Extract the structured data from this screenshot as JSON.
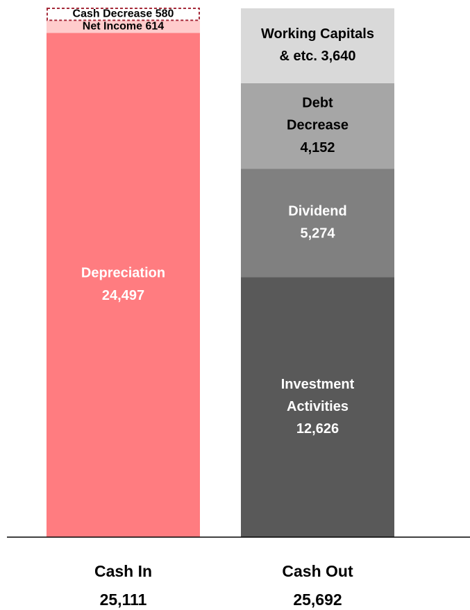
{
  "chart_data": {
    "type": "bar",
    "stacked": true,
    "categories": [
      "Cash In",
      "Cash Out"
    ],
    "totals": [
      25111,
      25692
    ],
    "total_labels": [
      "25,111",
      "25,692"
    ],
    "bars": [
      {
        "segments": [
          {
            "name_lines": [
              "Depreciation"
            ],
            "value": 24497,
            "value_label": "24,497",
            "color": "#ff7c80"
          },
          {
            "name_lines": [
              "Net Income"
            ],
            "value": 614,
            "value_label": "614",
            "color": "#ffcccc"
          },
          {
            "name_lines": [
              "Cash Decrease"
            ],
            "value": 580,
            "value_label": "580",
            "color": "#ffffff",
            "outline": "#a52a3a",
            "dashed": true
          }
        ]
      },
      {
        "segments": [
          {
            "name_lines": [
              "Investment",
              "Activities"
            ],
            "value": 12626,
            "value_label": "12,626",
            "color": "#595959"
          },
          {
            "name_lines": [
              "Dividend"
            ],
            "value": 5274,
            "value_label": "5,274",
            "color": "#808080"
          },
          {
            "name_lines": [
              "Debt",
              "Decrease"
            ],
            "value": 4152,
            "value_label": "4,152",
            "color": "#a6a6a6"
          },
          {
            "name_lines": [
              "Working Capitals",
              "& etc."
            ],
            "value": 3640,
            "value_label": "3,640",
            "color": "#d9d9d9"
          }
        ]
      }
    ]
  }
}
